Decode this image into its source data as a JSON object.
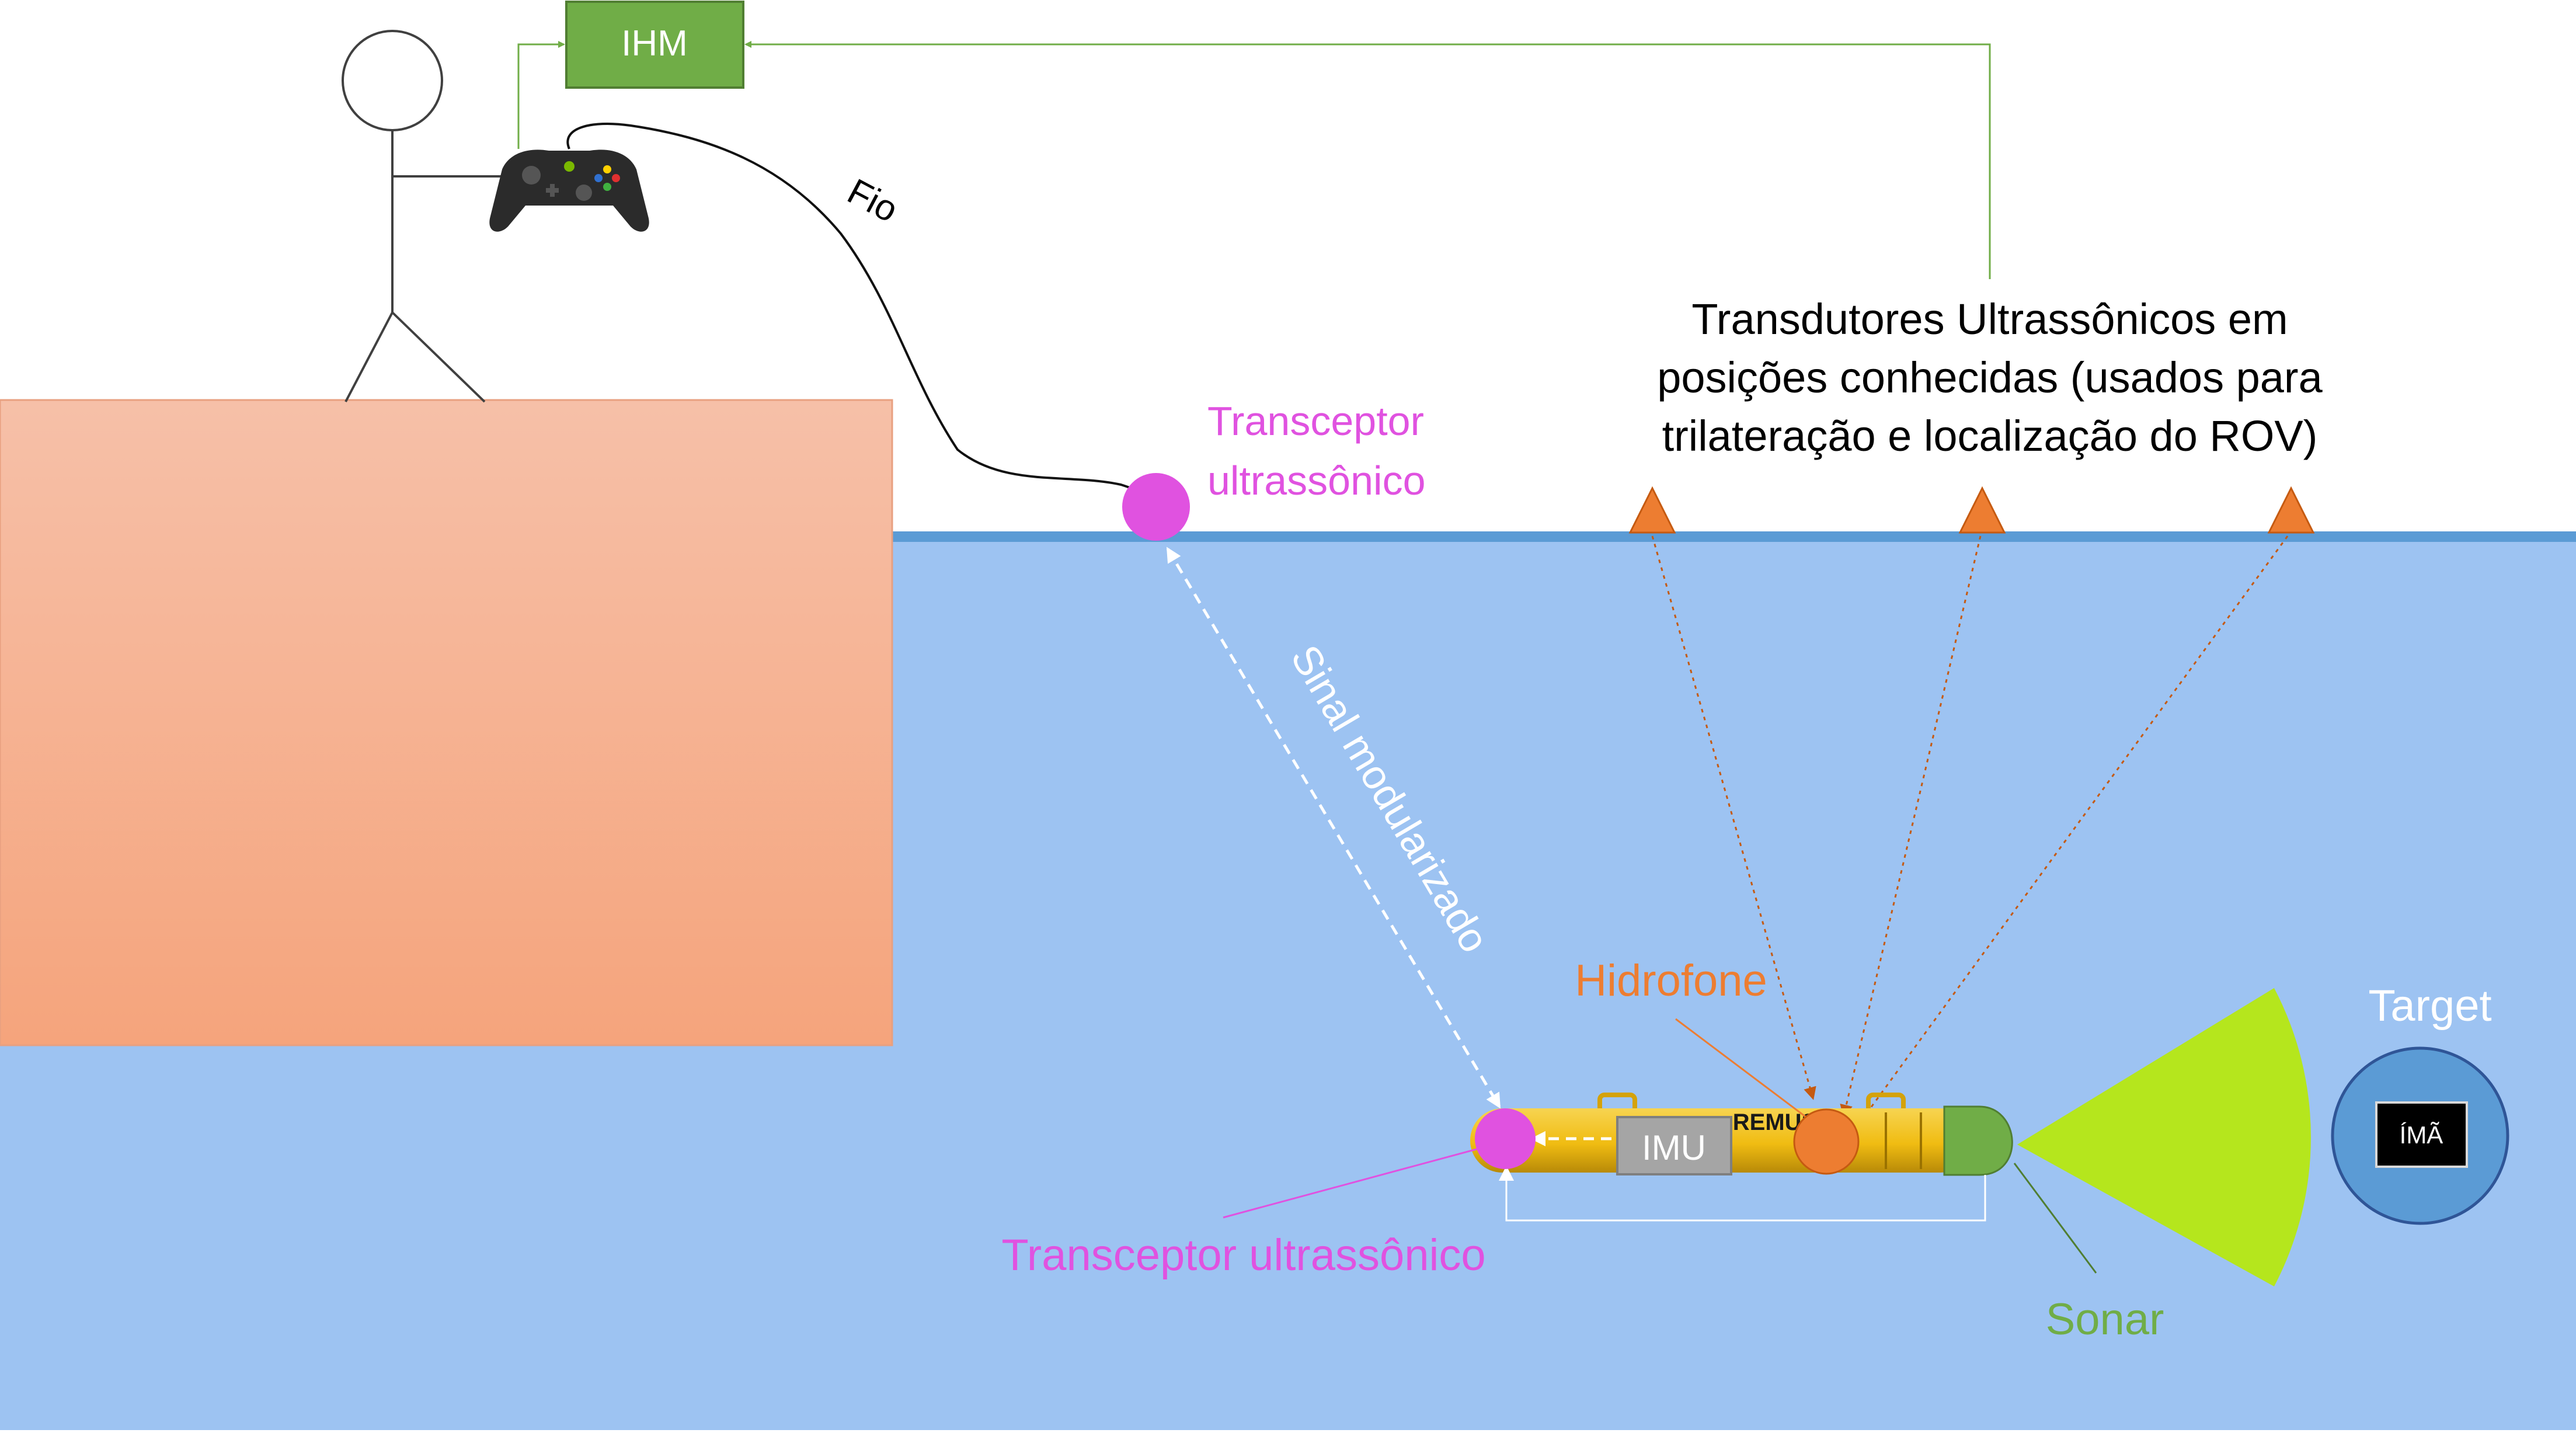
{
  "labels": {
    "ihm": "IHM",
    "fio": "Fio",
    "transceiver_surface_line1": "Transceptor",
    "transceiver_surface_line2": "ultrassônico",
    "transducers_line1": "Transdutores Ultrassônicos em",
    "transducers_line2": "posições conhecidas (usados para",
    "transducers_line3": "trilateração e localização do ROV)",
    "signal": "Sinal modularizado",
    "hydrophone": "Hidrofone",
    "target": "Target",
    "magnet": "ÍMÃ",
    "imu": "IMU",
    "transceiver_rov": "Transceptor ultrassônico",
    "sonar": "Sonar",
    "rov_brand": "REMUS"
  },
  "colors": {
    "water": "#9dc3f2",
    "water_surface": "#5b9bd5",
    "dock_top": "#f5bfa6",
    "dock_bottom": "#f5a47c",
    "ihm_box": "#70ad47",
    "ihm_border": "#507e32",
    "magenta": "#e052e0",
    "orange": "#ed7d31",
    "green_text": "#70ad47",
    "sonar_beam": "#b5e61d",
    "target_fill": "#5b9bd5",
    "rov_body": "#f2c01f",
    "imu_box": "#a5a5a5"
  }
}
